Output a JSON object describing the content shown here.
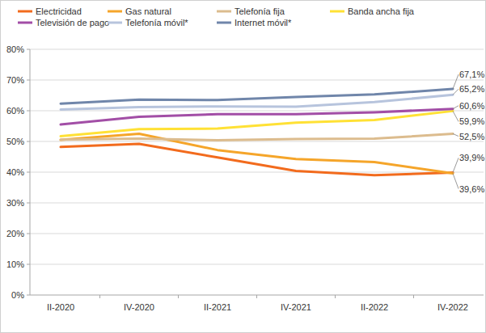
{
  "chart_data": {
    "type": "line",
    "categories": [
      "II-2020",
      "IV-2020",
      "II-2021",
      "IV-2021",
      "II-2022",
      "IV-2022"
    ],
    "ylim": [
      0,
      80
    ],
    "yticks": [
      {
        "value": 0,
        "label": "0%"
      },
      {
        "value": 10,
        "label": "10%"
      },
      {
        "value": 20,
        "label": "20%"
      },
      {
        "value": 30,
        "label": "30%"
      },
      {
        "value": 40,
        "label": "40%"
      },
      {
        "value": 50,
        "label": "50%"
      },
      {
        "value": 60,
        "label": "60%"
      },
      {
        "value": 70,
        "label": "70%"
      },
      {
        "value": 80,
        "label": "80%"
      }
    ],
    "grid": true,
    "legend": "top",
    "data_labels": true,
    "series": [
      {
        "name": "Electricidad",
        "color": "#f26b1d",
        "values": [
          48.2,
          49.2,
          44.8,
          40.4,
          39.0,
          39.9
        ],
        "value_labels": [
          null,
          null,
          null,
          null,
          null,
          "39,9%"
        ]
      },
      {
        "name": "Gas natural",
        "color": "#f5a52a",
        "values": [
          50.5,
          52.5,
          47.2,
          44.3,
          43.3,
          39.6
        ],
        "value_labels": [
          null,
          null,
          null,
          null,
          null,
          "39,6%"
        ]
      },
      {
        "name": "Telefonía fija",
        "color": "#dcbc8e",
        "values": [
          50.6,
          50.9,
          50.4,
          50.8,
          50.9,
          52.5
        ],
        "value_labels": [
          null,
          null,
          null,
          null,
          null,
          "52,5%"
        ]
      },
      {
        "name": "Banda ancha fija",
        "color": "#ffe135",
        "values": [
          51.7,
          54.0,
          54.2,
          56.1,
          57.0,
          59.9
        ],
        "value_labels": [
          null,
          null,
          null,
          null,
          null,
          "59,9%"
        ]
      },
      {
        "name": "Televisión de pago",
        "color": "#a24ea6",
        "values": [
          55.5,
          58.0,
          58.9,
          58.9,
          59.5,
          60.6
        ],
        "value_labels": [
          null,
          null,
          null,
          null,
          null,
          "60,6%"
        ]
      },
      {
        "name": "Telefonía móvil*",
        "color": "#b7c4dd",
        "values": [
          60.4,
          61.2,
          61.4,
          61.3,
          62.8,
          65.2
        ],
        "value_labels": [
          null,
          null,
          null,
          null,
          null,
          "65,2%"
        ]
      },
      {
        "name": "Internet móvil*",
        "color": "#7086aa",
        "values": [
          62.3,
          63.6,
          63.5,
          64.5,
          65.3,
          67.1
        ],
        "value_labels": [
          null,
          null,
          null,
          null,
          null,
          "67,1%"
        ]
      }
    ]
  }
}
